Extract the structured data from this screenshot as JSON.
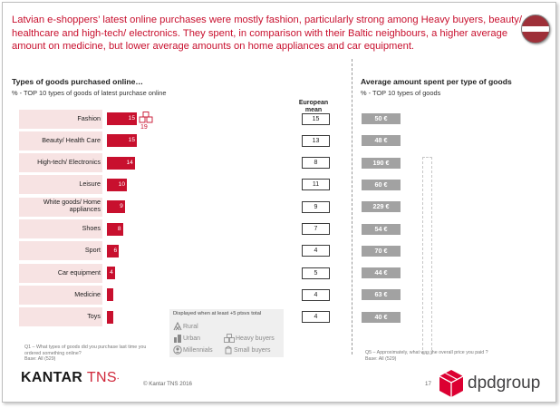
{
  "headline": "Latvian e-shoppers’ latest online purchases were mostly fashion, particularly strong among Heavy buyers, beauty/ healthcare and high-tech/ electronics. They spent, in comparison with their Baltic neighbours, a higher average amount on medicine, but lower average amounts on home appliances and car equipment.",
  "left_section": {
    "title": "Types of goods purchased online…",
    "subtitle": "% - TOP 10 types of goods of latest purchase online"
  },
  "right_section": {
    "title": "Average amount spent per type of goods",
    "subtitle": "% - TOP 10 types of goods"
  },
  "eu_header": "European mean",
  "heavy_buyers_callout": "19",
  "legend": {
    "title": "Displayed when at least +5 ptsvs total",
    "items": {
      "rural": "Rural",
      "urban": "Urban",
      "millennials": "Millennials",
      "heavy": "Heavy buyers",
      "small": "Small buyers"
    }
  },
  "footnotes": {
    "q1": "Q1 – What types of goods did you purchase last time you ordered something online?",
    "q1_base": "Base: All (529)",
    "q5": "Q5 – Approximately, what was the overall price you paid ?",
    "q5_base": "Base: All (529)"
  },
  "brand": {
    "kantar_1": "KANTAR ",
    "kantar_2": "TNS",
    "kantar_mark": "⸱",
    "copyright": "© Kantar TNS 2016",
    "page": "17",
    "dpd": "dpdgroup"
  },
  "colors": {
    "accent": "#c8102e",
    "grey_box": "#a2a2a2",
    "row_bg": "#f7e3e3"
  },
  "chart_data": [
    {
      "type": "bar",
      "orientation": "horizontal",
      "categories": [
        "Fashion",
        "Beauty/ Health Care",
        "High-tech/ Electronics",
        "Leisure",
        "White goods/ Home appliances",
        "Shoes",
        "Sport",
        "Car equipment",
        "Medicine",
        "Toys"
      ],
      "series": [
        {
          "values": [
            15,
            15,
            14,
            10,
            9,
            8,
            6,
            4,
            3,
            3
          ]
        }
      ],
      "value_labels": [
        "15",
        "15",
        "14",
        "10",
        "9",
        "8",
        "6",
        "4",
        "",
        ""
      ],
      "european_mean": [
        15,
        13,
        8,
        11,
        9,
        7,
        4,
        5,
        4,
        4
      ],
      "title": "Types of goods purchased online…",
      "subtitle": "% - TOP 10 types of goods of latest purchase online",
      "xlim": [
        0,
        15
      ]
    },
    {
      "type": "table",
      "title": "Average amount spent per type of goods",
      "subtitle": "% - TOP 10 types of goods",
      "categories": [
        "Fashion",
        "Beauty/ Health Care",
        "High-tech/ Electronics",
        "Leisure",
        "White goods/ Home appliances",
        "Shoes",
        "Sport",
        "Car equipment",
        "Medicine",
        "Toys"
      ],
      "values": [
        "50 €",
        "48 €",
        "190 €",
        "60 €",
        "229 €",
        "54 €",
        "70 €",
        "44 €",
        "63 €",
        "40 €"
      ]
    }
  ]
}
